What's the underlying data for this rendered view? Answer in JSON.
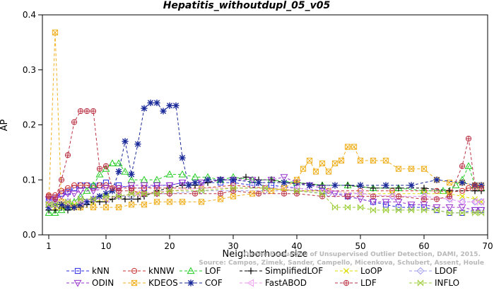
{
  "chart_data": {
    "type": "line",
    "title": "Hepatitis_withoutdupl_05_v05",
    "xlabel": "Neighborhood size",
    "ylabel": "AP",
    "xlim": [
      0,
      70
    ],
    "ylim": [
      0,
      0.4
    ],
    "xticks": [
      1,
      10,
      20,
      30,
      40,
      50,
      60,
      70
    ],
    "yticks": [
      0.0,
      0.1,
      0.2,
      0.3,
      0.4
    ],
    "xtick_labels": [
      "1",
      "10",
      "20",
      "30",
      "40",
      "50",
      "60",
      "70"
    ],
    "ytick_labels": [
      "0.0",
      "0.1",
      "0.2",
      "0.3",
      "0.4"
    ],
    "grid": false,
    "legend_position": "bottom",
    "watermark": [
      "Source: Campos, Zimek, Sander, Campello, Micenkova, Schubert, Assent, Houle",
      "On the Evaluation of Unsupervised Outlier Detection, DAMI, 2015."
    ],
    "series": [
      {
        "name": "kNN",
        "color": "#2a2ae0",
        "marker": "square",
        "x": [
          1,
          2,
          3,
          4,
          5,
          6,
          7,
          8,
          9,
          10,
          12,
          14,
          16,
          18,
          20,
          22,
          25,
          28,
          30,
          33,
          36,
          40,
          44,
          48,
          52,
          54,
          56,
          58,
          60,
          62,
          64,
          66,
          68,
          69
        ],
        "y": [
          0.063,
          0.068,
          0.075,
          0.078,
          0.085,
          0.09,
          0.09,
          0.088,
          0.09,
          0.095,
          0.09,
          0.085,
          0.085,
          0.09,
          0.09,
          0.095,
          0.095,
          0.095,
          0.095,
          0.09,
          0.09,
          0.085,
          0.08,
          0.07,
          0.06,
          0.055,
          0.05,
          0.05,
          0.05,
          0.045,
          0.04,
          0.04,
          0.045,
          0.045
        ]
      },
      {
        "name": "kNNW",
        "color": "#cc3333",
        "marker": "circle-cross",
        "x": [
          1,
          2,
          3,
          4,
          5,
          6,
          7,
          8,
          9,
          10,
          12,
          14,
          16,
          18,
          20,
          25,
          30,
          35,
          40,
          45,
          50,
          55,
          60,
          62,
          64,
          66,
          67,
          68,
          69
        ],
        "y": [
          0.072,
          0.072,
          0.08,
          0.085,
          0.09,
          0.09,
          0.09,
          0.085,
          0.09,
          0.09,
          0.085,
          0.085,
          0.085,
          0.085,
          0.085,
          0.085,
          0.09,
          0.085,
          0.08,
          0.08,
          0.08,
          0.08,
          0.08,
          0.08,
          0.078,
          0.08,
          0.085,
          0.085,
          0.085
        ]
      },
      {
        "name": "LOF",
        "color": "#22cc22",
        "marker": "triangle",
        "x": [
          1,
          2,
          3,
          4,
          5,
          6,
          7,
          8,
          9,
          10,
          11,
          12,
          13,
          14,
          16,
          18,
          20,
          22,
          24,
          26,
          28,
          30,
          33,
          36,
          40,
          44,
          48,
          52,
          56,
          60,
          63,
          65,
          66,
          67,
          68,
          69
        ],
        "y": [
          0.04,
          0.04,
          0.045,
          0.05,
          0.06,
          0.07,
          0.08,
          0.09,
          0.11,
          0.12,
          0.13,
          0.13,
          0.115,
          0.1,
          0.1,
          0.1,
          0.11,
          0.11,
          0.105,
          0.105,
          0.1,
          0.105,
          0.1,
          0.1,
          0.095,
          0.09,
          0.09,
          0.085,
          0.085,
          0.08,
          0.08,
          0.09,
          0.1,
          0.125,
          0.09,
          0.085
        ]
      },
      {
        "name": "SimplifiedLOF",
        "color": "#000000",
        "marker": "plus",
        "x": [
          1,
          2,
          3,
          4,
          5,
          6,
          7,
          8,
          9,
          10,
          11,
          12,
          13,
          14,
          15,
          16,
          18,
          20,
          22,
          24,
          26,
          28,
          30,
          32,
          34,
          36,
          38,
          40,
          44,
          48,
          52,
          56,
          60,
          64,
          68,
          69
        ],
        "y": [
          0.045,
          0.045,
          0.05,
          0.045,
          0.05,
          0.05,
          0.055,
          0.06,
          0.06,
          0.06,
          0.065,
          0.07,
          0.065,
          0.065,
          0.065,
          0.07,
          0.08,
          0.085,
          0.09,
          0.09,
          0.095,
          0.1,
          0.1,
          0.105,
          0.1,
          0.1,
          0.095,
          0.095,
          0.09,
          0.09,
          0.085,
          0.085,
          0.085,
          0.08,
          0.08,
          0.08
        ]
      },
      {
        "name": "LoOP",
        "color": "#dddd00",
        "marker": "x",
        "x": [
          1,
          2,
          3,
          4,
          5,
          6,
          8,
          10,
          12,
          15,
          20,
          25,
          30,
          35,
          40,
          45,
          50,
          55,
          60,
          64,
          66,
          68,
          69
        ],
        "y": [
          0.05,
          0.05,
          0.05,
          0.055,
          0.055,
          0.06,
          0.06,
          0.065,
          0.07,
          0.075,
          0.08,
          0.085,
          0.085,
          0.085,
          0.08,
          0.08,
          0.075,
          0.075,
          0.075,
          0.075,
          0.07,
          0.065,
          0.06
        ]
      },
      {
        "name": "LDOF",
        "color": "#9999ee",
        "marker": "diamond",
        "x": [
          1,
          2,
          4,
          6,
          8,
          10,
          12,
          14,
          16,
          18,
          20,
          25,
          30,
          35,
          40,
          45,
          50,
          55,
          60,
          64,
          66,
          68,
          69
        ],
        "y": [
          0.06,
          0.06,
          0.06,
          0.065,
          0.065,
          0.07,
          0.07,
          0.07,
          0.075,
          0.075,
          0.075,
          0.08,
          0.08,
          0.08,
          0.08,
          0.075,
          0.075,
          0.07,
          0.07,
          0.065,
          0.06,
          0.06,
          0.06
        ]
      },
      {
        "name": "ODIN",
        "color": "#9933cc",
        "marker": "triangle-down",
        "x": [
          1,
          2,
          3,
          4,
          5,
          6,
          8,
          10,
          12,
          14,
          16,
          18,
          20,
          22,
          25,
          28,
          30,
          33,
          36,
          38,
          40,
          42,
          44,
          46,
          48,
          50,
          52,
          54,
          56,
          58,
          60,
          62,
          64,
          66,
          68,
          69
        ],
        "y": [
          0.065,
          0.065,
          0.07,
          0.075,
          0.075,
          0.08,
          0.08,
          0.085,
          0.085,
          0.09,
          0.09,
          0.09,
          0.09,
          0.095,
          0.095,
          0.1,
          0.1,
          0.1,
          0.1,
          0.105,
          0.095,
          0.09,
          0.085,
          0.075,
          0.07,
          0.065,
          0.06,
          0.06,
          0.06,
          0.055,
          0.055,
          0.05,
          0.05,
          0.05,
          0.045,
          0.045
        ]
      },
      {
        "name": "KDEOS",
        "color": "#f0b020",
        "marker": "square-x",
        "x": [
          1,
          2,
          3,
          4,
          5,
          6,
          8,
          10,
          12,
          14,
          16,
          18,
          20,
          22,
          25,
          28,
          30,
          33,
          36,
          38,
          40,
          41,
          42,
          43,
          44,
          45,
          46,
          47,
          48,
          49,
          50,
          52,
          54,
          56,
          58,
          60,
          62,
          64,
          66,
          68,
          69
        ],
        "y": [
          0.055,
          0.368,
          0.06,
          0.055,
          0.05,
          0.05,
          0.05,
          0.05,
          0.05,
          0.055,
          0.055,
          0.06,
          0.06,
          0.06,
          0.06,
          0.065,
          0.07,
          0.075,
          0.08,
          0.085,
          0.1,
          0.12,
          0.135,
          0.115,
          0.13,
          0.115,
          0.13,
          0.135,
          0.16,
          0.16,
          0.135,
          0.135,
          0.135,
          0.12,
          0.12,
          0.12,
          0.1,
          0.095,
          0.095,
          0.09,
          0.09
        ]
      },
      {
        "name": "COF",
        "color": "#1a2a99",
        "marker": "asterisk",
        "x": [
          1,
          2,
          3,
          4,
          5,
          6,
          7,
          8,
          9,
          10,
          11,
          12,
          13,
          14,
          15,
          16,
          17,
          18,
          19,
          20,
          21,
          22,
          23,
          24,
          26,
          28,
          30,
          34,
          38,
          42,
          46,
          50,
          54,
          58,
          62,
          66,
          68,
          69
        ],
        "y": [
          0.05,
          0.055,
          0.055,
          0.05,
          0.05,
          0.055,
          0.06,
          0.065,
          0.07,
          0.075,
          0.08,
          0.115,
          0.17,
          0.11,
          0.165,
          0.23,
          0.24,
          0.24,
          0.225,
          0.235,
          0.235,
          0.14,
          0.09,
          0.095,
          0.1,
          0.1,
          0.1,
          0.095,
          0.095,
          0.09,
          0.09,
          0.09,
          0.09,
          0.09,
          0.1,
          0.095,
          0.09,
          0.09
        ]
      },
      {
        "name": "FastABOD",
        "color": "#ee99ee",
        "marker": "triangle-left",
        "x": [
          1,
          2,
          4,
          6,
          8,
          10,
          12,
          15,
          20,
          25,
          30,
          35,
          40,
          45,
          50,
          55,
          60,
          64,
          66,
          68,
          69
        ],
        "y": [
          0.055,
          0.055,
          0.06,
          0.06,
          0.065,
          0.065,
          0.07,
          0.075,
          0.08,
          0.085,
          0.085,
          0.085,
          0.085,
          0.08,
          0.075,
          0.07,
          0.07,
          0.065,
          0.06,
          0.06,
          0.06
        ]
      },
      {
        "name": "LDF",
        "color": "#bb3344",
        "marker": "circle-plus",
        "x": [
          1,
          2,
          3,
          4,
          5,
          6,
          7,
          8,
          9,
          10,
          11,
          12,
          14,
          16,
          18,
          20,
          24,
          28,
          30,
          34,
          38,
          40,
          44,
          48,
          52,
          56,
          60,
          62,
          64,
          66,
          67,
          68,
          69
        ],
        "y": [
          0.07,
          0.065,
          0.1,
          0.145,
          0.205,
          0.225,
          0.225,
          0.225,
          0.12,
          0.125,
          0.085,
          0.08,
          0.08,
          0.075,
          0.075,
          0.075,
          0.075,
          0.075,
          0.08,
          0.075,
          0.075,
          0.075,
          0.07,
          0.07,
          0.07,
          0.07,
          0.065,
          0.065,
          0.07,
          0.125,
          0.175,
          0.09,
          0.085
        ]
      },
      {
        "name": "INFLO",
        "color": "#99cc33",
        "marker": "bowtie",
        "x": [
          1,
          2,
          4,
          6,
          8,
          10,
          12,
          14,
          16,
          18,
          20,
          25,
          30,
          35,
          40,
          44,
          46,
          48,
          50,
          52,
          54,
          56,
          58,
          60,
          62,
          64,
          66,
          68,
          69
        ],
        "y": [
          0.055,
          0.055,
          0.06,
          0.065,
          0.065,
          0.07,
          0.07,
          0.075,
          0.075,
          0.075,
          0.08,
          0.08,
          0.085,
          0.085,
          0.08,
          0.075,
          0.05,
          0.05,
          0.05,
          0.045,
          0.045,
          0.045,
          0.045,
          0.045,
          0.045,
          0.04,
          0.04,
          0.04,
          0.04
        ]
      }
    ]
  }
}
